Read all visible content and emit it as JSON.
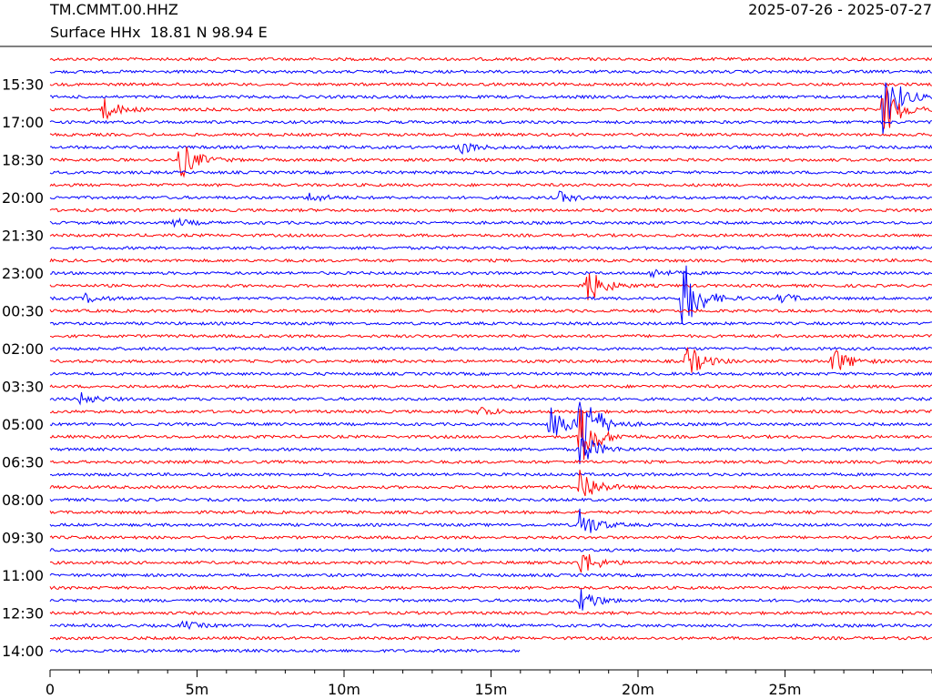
{
  "header": {
    "station": "TM.CMMT.00.HHZ",
    "subtitle": "Surface HHx  18.81 N 98.94 E",
    "date_range": "2025-07-26 - 2025-07-27"
  },
  "chart_data": {
    "type": "line",
    "title": "TM.CMMT.00.HHZ",
    "subtitle": "Surface HHx  18.81 N 98.94 E",
    "x_unit": "minutes",
    "xlim": [
      0,
      30
    ],
    "x_ticks": [
      0,
      5,
      10,
      15,
      20,
      25
    ],
    "x_tick_labels": [
      "0",
      "5m",
      "10m",
      "15m",
      "20m",
      "25m"
    ],
    "x_minor_tick_step": 1,
    "row_count": 48,
    "row_minutes": 30,
    "y_tick_labels": [
      "15:30",
      "17:00",
      "18:30",
      "20:00",
      "21:30",
      "23:00",
      "00:30",
      "02:00",
      "03:30",
      "05:00",
      "06:30",
      "08:00",
      "09:30",
      "11:00",
      "12:30",
      "14:00"
    ],
    "y_tick_label_rows": [
      3,
      6,
      9,
      12,
      15,
      18,
      21,
      24,
      27,
      30,
      33,
      36,
      39,
      42,
      45,
      48
    ],
    "colors": [
      "#ff0000",
      "#0000ff"
    ],
    "last_row_end_minute": 16,
    "events": [
      {
        "row": 5,
        "minute": 1.8,
        "amp": 1.6
      },
      {
        "row": 8,
        "minute": 13.8,
        "amp": 1.3
      },
      {
        "row": 9,
        "minute": 4.4,
        "amp": 3.0
      },
      {
        "row": 4,
        "minute": 28.3,
        "amp": 5.5
      },
      {
        "row": 5,
        "minute": 28.3,
        "amp": 4.5
      },
      {
        "row": 12,
        "minute": 8.8,
        "amp": 0.7
      },
      {
        "row": 12,
        "minute": 17.3,
        "amp": 0.8
      },
      {
        "row": 14,
        "minute": 4.2,
        "amp": 0.6
      },
      {
        "row": 18,
        "minute": 20.4,
        "amp": 0.7
      },
      {
        "row": 19,
        "minute": 18.2,
        "amp": 3.0
      },
      {
        "row": 20,
        "minute": 1.2,
        "amp": 0.6
      },
      {
        "row": 20,
        "minute": 24.8,
        "amp": 0.8
      },
      {
        "row": 20,
        "minute": 21.5,
        "amp": 6.0
      },
      {
        "row": 25,
        "minute": 21.6,
        "amp": 2.8
      },
      {
        "row": 25,
        "minute": 26.6,
        "amp": 2.2
      },
      {
        "row": 28,
        "minute": 1.0,
        "amp": 0.9
      },
      {
        "row": 29,
        "minute": 14.5,
        "amp": 0.9
      },
      {
        "row": 30,
        "minute": 17.0,
        "amp": 3.0
      },
      {
        "row": 30,
        "minute": 18.0,
        "amp": 7.0
      },
      {
        "row": 31,
        "minute": 18.0,
        "amp": 5.0
      },
      {
        "row": 32,
        "minute": 18.0,
        "amp": 3.0
      },
      {
        "row": 35,
        "minute": 18.0,
        "amp": 3.0
      },
      {
        "row": 38,
        "minute": 18.0,
        "amp": 2.5
      },
      {
        "row": 41,
        "minute": 18.0,
        "amp": 2.2
      },
      {
        "row": 44,
        "minute": 18.0,
        "amp": 2.0
      },
      {
        "row": 46,
        "minute": 4.5,
        "amp": 0.6
      }
    ]
  }
}
